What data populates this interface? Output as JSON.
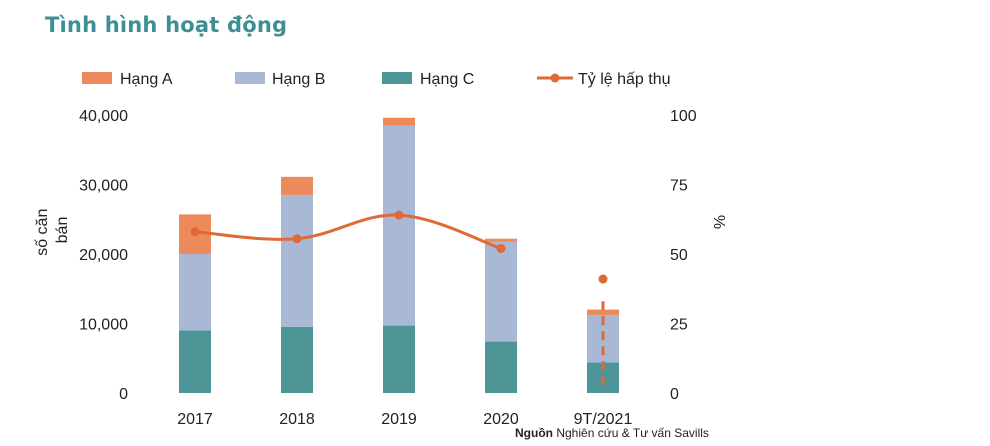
{
  "title": "Tình hình hoạt động",
  "source": {
    "bold": "Nguồn",
    "text": " Nghiên cứu & Tư vấn Savills"
  },
  "colors": {
    "hang_a": "#ec8a5c",
    "hang_b": "#a9b8d4",
    "hang_c": "#4d9597",
    "ty_le": "#e06a37",
    "title": "#3e8f93"
  },
  "chart_data": {
    "type": "bar",
    "stacked": true,
    "categories": [
      "2017",
      "2018",
      "2019",
      "2020",
      "9T/2021"
    ],
    "series": [
      {
        "name": "Hạng C",
        "values": [
          9000,
          9500,
          9700,
          7400,
          4400
        ]
      },
      {
        "name": "Hạng B",
        "values": [
          11000,
          19000,
          28800,
          14400,
          6800
        ]
      },
      {
        "name": "Hạng A",
        "values": [
          5700,
          2600,
          1100,
          400,
          800
        ]
      }
    ],
    "line_series": {
      "name": "Tỷ lệ hấp thụ",
      "axis": "right",
      "values": [
        58,
        55.5,
        64,
        52
      ],
      "forecast_point": {
        "category": "9T/2021",
        "value": 41
      },
      "forecast_dashed_range": [
        33,
        3
      ]
    },
    "ylabel_left": "số căn bán",
    "ylabel_right": "%",
    "ylim_left": [
      0,
      40000
    ],
    "ylim_right": [
      0,
      100
    ],
    "yticks_left": [
      "0",
      "10,000",
      "20,000",
      "30,000",
      "40,000"
    ],
    "yticks_right": [
      "0",
      "25",
      "50",
      "75",
      "100"
    ],
    "legend": [
      "Hạng A",
      "Hạng B",
      "Hạng C",
      "Tỷ lệ hấp thụ"
    ],
    "grid": false
  }
}
